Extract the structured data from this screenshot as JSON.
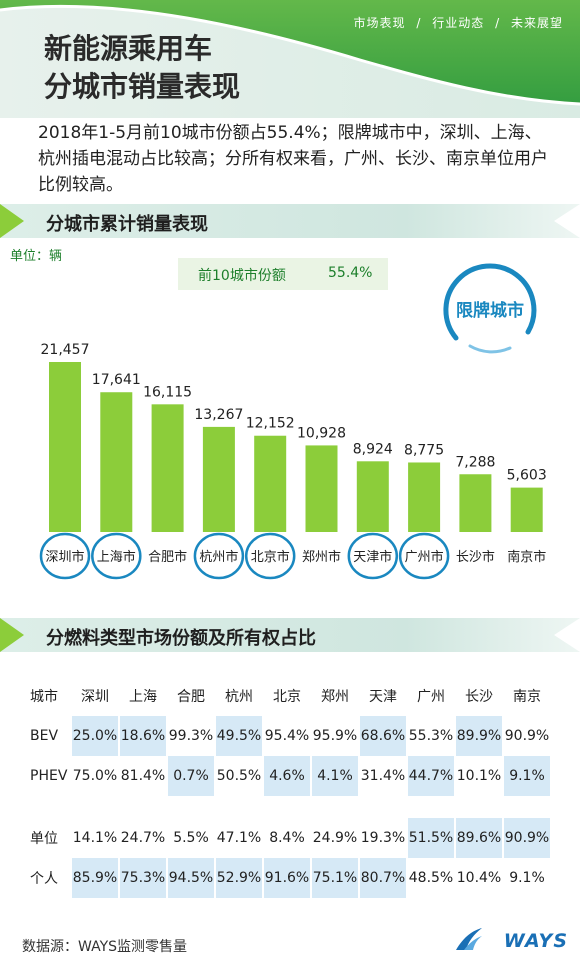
{
  "header": {
    "nav": [
      "市场表现",
      "/",
      "行业动态",
      "/",
      "未来展望"
    ],
    "title_line1": "新能源乘用车",
    "title_line2": "分城市销量表现"
  },
  "intro": "2018年1-5月前10城市份额占55.4%；限牌城市中，深圳、上海、杭州插电混动占比较高；分所有权来看，广州、长沙、南京单位用户比例较高。",
  "section1": {
    "title": "分城市累计销量表现",
    "unit": "单位：辆",
    "share_label": "前10城市份额",
    "share_value": "55.4%",
    "restricted_label": "限牌城市"
  },
  "chart_data": {
    "type": "bar",
    "categories": [
      "深圳市",
      "上海市",
      "合肥市",
      "杭州市",
      "北京市",
      "郑州市",
      "天津市",
      "广州市",
      "长沙市",
      "南京市"
    ],
    "values": [
      21457,
      17641,
      16115,
      13267,
      12152,
      10928,
      8924,
      8775,
      7288,
      5603
    ],
    "value_labels": [
      "21,457",
      "17,641",
      "16,115",
      "13,267",
      "12,152",
      "10,928",
      "8,924",
      "8,775",
      "7,288",
      "5,603"
    ],
    "restricted": [
      true,
      true,
      false,
      true,
      true,
      false,
      true,
      true,
      false,
      false
    ],
    "bar_color": "#8ccd3a",
    "circle_color": "#1a88c0",
    "ylabel": "单位：辆",
    "ylim": [
      0,
      21457
    ]
  },
  "section2": {
    "title": "分燃料类型市场份额及所有权占比"
  },
  "table": {
    "corner": "城市",
    "columns": [
      "深圳",
      "上海",
      "合肥",
      "杭州",
      "北京",
      "郑州",
      "天津",
      "广州",
      "长沙",
      "南京"
    ],
    "fuel_rows": [
      {
        "label": "BEV",
        "values": [
          "25.0%",
          "18.6%",
          "99.3%",
          "49.5%",
          "95.4%",
          "95.9%",
          "68.6%",
          "55.3%",
          "89.9%",
          "90.9%"
        ]
      },
      {
        "label": "PHEV",
        "values": [
          "75.0%",
          "81.4%",
          "0.7%",
          "50.5%",
          "4.6%",
          "4.1%",
          "31.4%",
          "44.7%",
          "10.1%",
          "9.1%"
        ]
      }
    ],
    "owner_rows": [
      {
        "label": "单位",
        "values": [
          "14.1%",
          "24.7%",
          "5.5%",
          "47.1%",
          "8.4%",
          "24.9%",
          "19.3%",
          "51.5%",
          "89.6%",
          "90.9%"
        ]
      },
      {
        "label": "个人",
        "values": [
          "85.9%",
          "75.3%",
          "94.5%",
          "52.9%",
          "91.6%",
          "75.1%",
          "80.7%",
          "48.5%",
          "10.4%",
          "9.1%"
        ]
      }
    ],
    "highlight_color": "#d6e9f6"
  },
  "footer": {
    "source": "数据源：WAYS监测零售量",
    "logo": "WAYS"
  }
}
